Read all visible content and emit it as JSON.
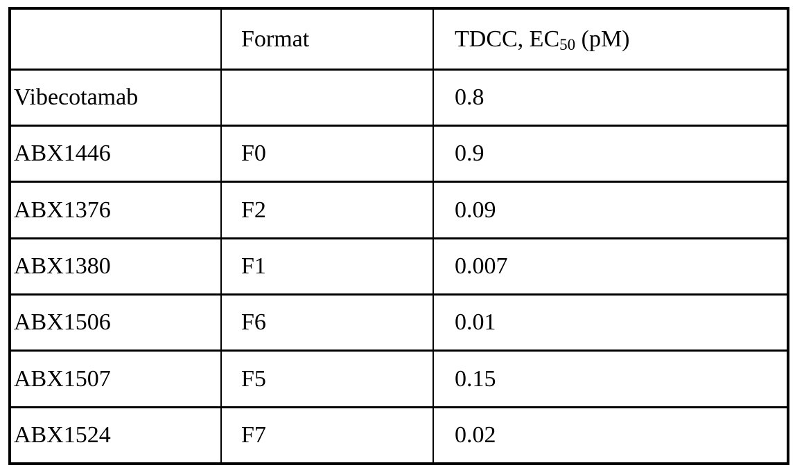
{
  "table": {
    "title_semantic": "TDCC potency table",
    "columns": {
      "col1_header": "",
      "col2_header": "Format",
      "col3_header_prefix": "TDCC, EC",
      "col3_header_sub": "50",
      "col3_header_suffix": " (pM)"
    },
    "rows": [
      {
        "name": "Vibecotamab",
        "format": "",
        "ec50_pm": "0.8"
      },
      {
        "name": "ABX1446",
        "format": "F0",
        "ec50_pm": "0.9"
      },
      {
        "name": "ABX1376",
        "format": "F2",
        "ec50_pm": "0.09"
      },
      {
        "name": "ABX1380",
        "format": "F1",
        "ec50_pm": "0.007"
      },
      {
        "name": "ABX1506",
        "format": "F6",
        "ec50_pm": "0.01"
      },
      {
        "name": "ABX1507",
        "format": "F5",
        "ec50_pm": "0.15"
      },
      {
        "name": "ABX1524",
        "format": "F7",
        "ec50_pm": "0.02"
      }
    ],
    "colors": {
      "border": "#000000",
      "text": "#000000",
      "background": "#ffffff"
    }
  }
}
